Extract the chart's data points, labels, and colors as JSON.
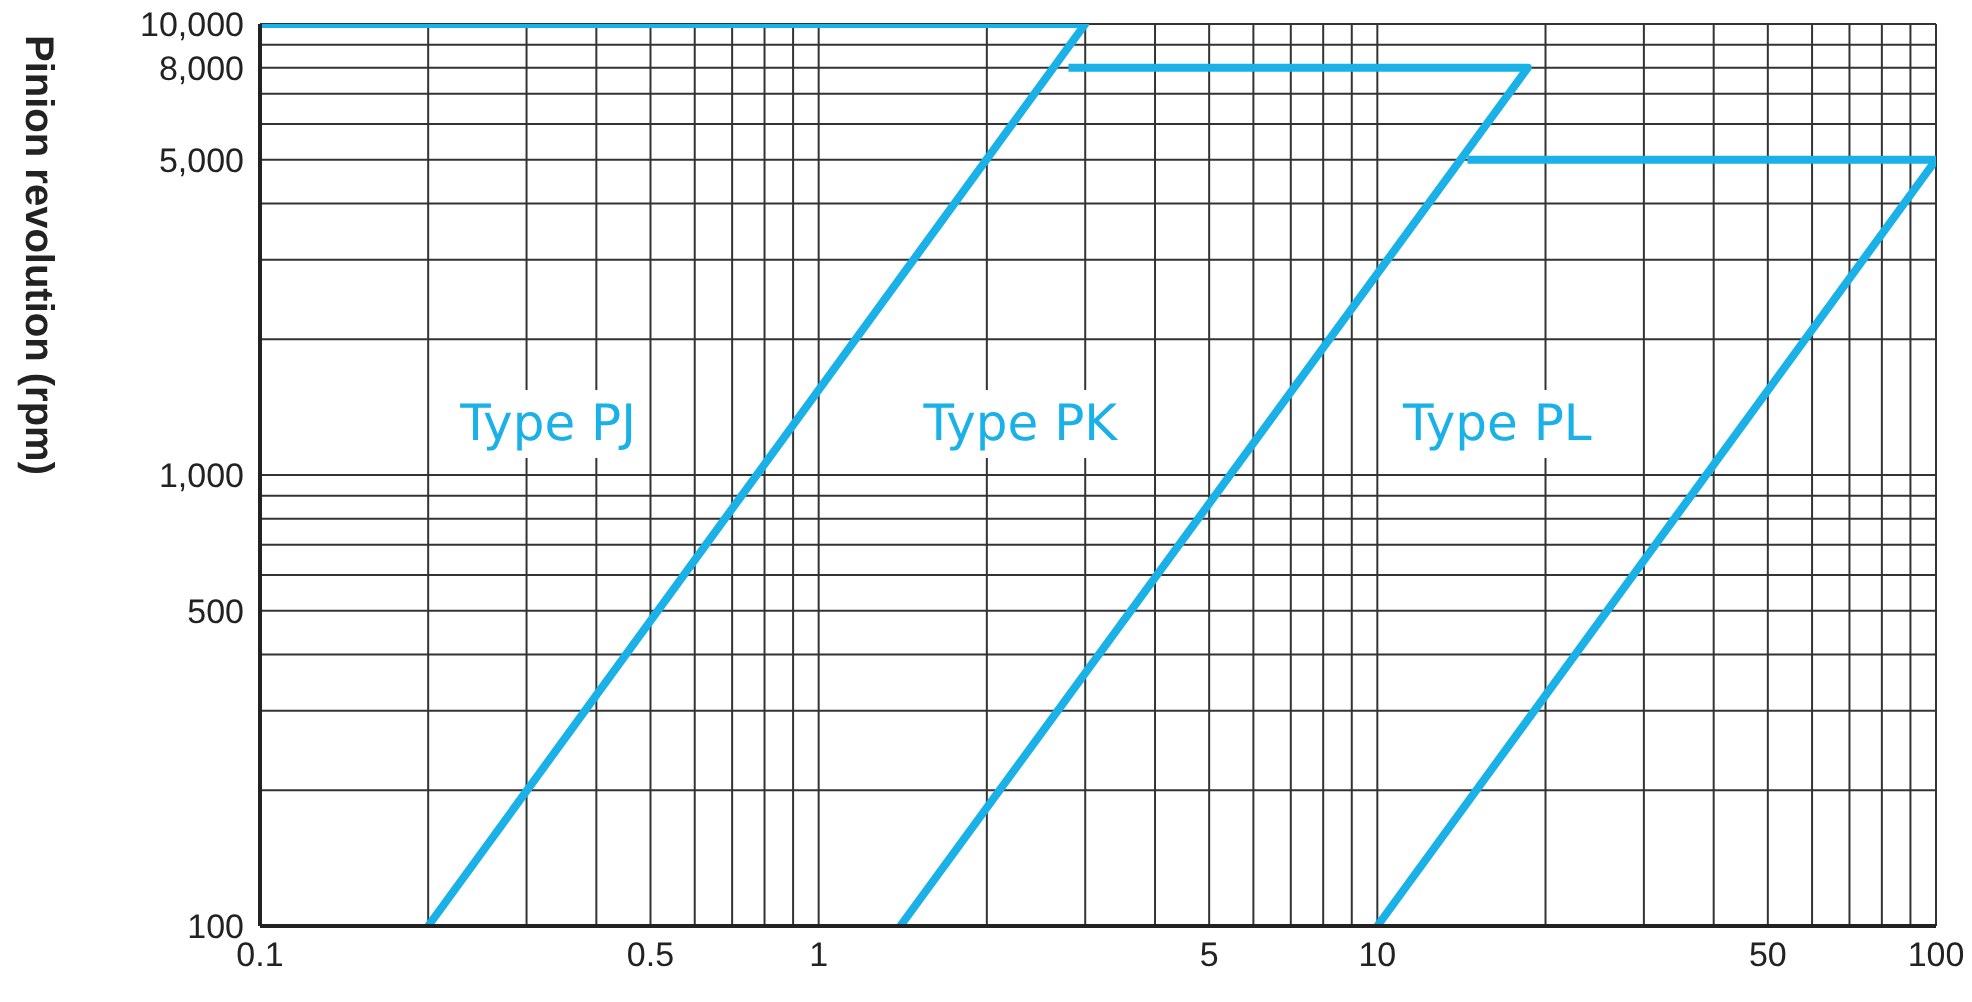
{
  "chart_data": {
    "type": "line",
    "ylabel": "Pinion revolution (rpm)",
    "log": "xy",
    "grid": true,
    "legend": false,
    "marker": "none",
    "line_style": "solid",
    "xlim": [
      0.1,
      100
    ],
    "ylim": [
      100,
      10000
    ],
    "xticks": [
      {
        "value": 0.1,
        "label": "0.1"
      },
      {
        "value": 0.2,
        "label": null
      },
      {
        "value": 0.3,
        "label": null
      },
      {
        "value": 0.4,
        "label": null
      },
      {
        "value": 0.5,
        "label": "0.5"
      },
      {
        "value": 0.6,
        "label": null
      },
      {
        "value": 0.7,
        "label": null
      },
      {
        "value": 0.8,
        "label": null
      },
      {
        "value": 0.9,
        "label": null
      },
      {
        "value": 1,
        "label": "1"
      },
      {
        "value": 2,
        "label": null
      },
      {
        "value": 3,
        "label": null
      },
      {
        "value": 4,
        "label": null
      },
      {
        "value": 5,
        "label": "5"
      },
      {
        "value": 6,
        "label": null
      },
      {
        "value": 7,
        "label": null
      },
      {
        "value": 8,
        "label": null
      },
      {
        "value": 9,
        "label": null
      },
      {
        "value": 10,
        "label": "10"
      },
      {
        "value": 20,
        "label": null
      },
      {
        "value": 30,
        "label": null
      },
      {
        "value": 40,
        "label": null
      },
      {
        "value": 50,
        "label": "50"
      },
      {
        "value": 60,
        "label": null
      },
      {
        "value": 70,
        "label": null
      },
      {
        "value": 80,
        "label": null
      },
      {
        "value": 90,
        "label": null
      },
      {
        "value": 100,
        "label": "100"
      }
    ],
    "yticks": [
      {
        "value": 100,
        "label": "100"
      },
      {
        "value": 200,
        "label": null
      },
      {
        "value": 300,
        "label": null
      },
      {
        "value": 400,
        "label": null
      },
      {
        "value": 500,
        "label": "500"
      },
      {
        "value": 600,
        "label": null
      },
      {
        "value": 700,
        "label": null
      },
      {
        "value": 800,
        "label": null
      },
      {
        "value": 900,
        "label": null
      },
      {
        "value": 1000,
        "label": "1,000"
      },
      {
        "value": 2000,
        "label": null
      },
      {
        "value": 3000,
        "label": null
      },
      {
        "value": 4000,
        "label": null
      },
      {
        "value": 5000,
        "label": "5,000"
      },
      {
        "value": 6000,
        "label": null
      },
      {
        "value": 7000,
        "label": null
      },
      {
        "value": 8000,
        "label": "8,000"
      },
      {
        "value": 9000,
        "label": null
      },
      {
        "value": 10000,
        "label": "10,000"
      }
    ],
    "series": [
      {
        "name": "Type PJ",
        "color": "#1ab0e8",
        "x": [
          0.1,
          3.0,
          0.2
        ],
        "values": [
          10000,
          10000,
          100
        ]
      },
      {
        "name": "Type PK",
        "color": "#1ab0e8",
        "x": [
          2.8,
          18.6,
          1.4
        ],
        "values": [
          8000,
          8000,
          100
        ]
      },
      {
        "name": "Type PL",
        "color": "#1ab0e8",
        "x": [
          14.5,
          100,
          10
        ],
        "values": [
          5000,
          5000,
          100
        ]
      }
    ]
  }
}
